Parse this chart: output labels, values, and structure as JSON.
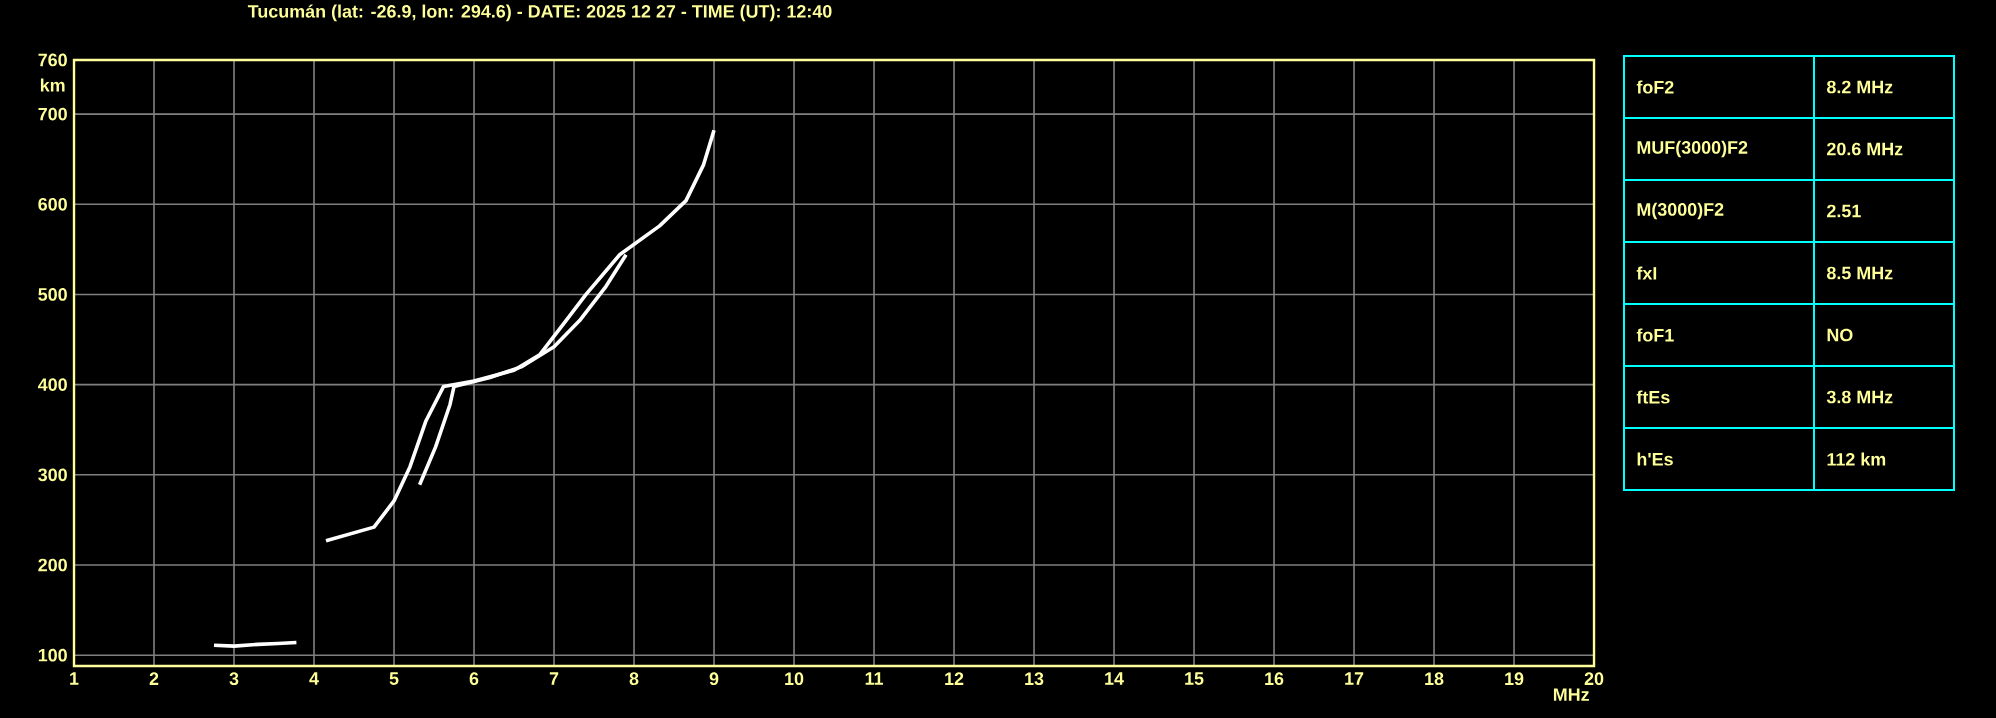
{
  "chart_data": [
    {
      "type": "line",
      "title": "Tucumán (lat: -26.9, lon: 294.6) - DATE: 2025 12 27 - TIME (UT): 12:40",
      "xlabel": "MHz",
      "ylabel": "km",
      "xlim": [
        1,
        20
      ],
      "ylim": [
        88,
        760
      ],
      "xticks": [
        1,
        2,
        3,
        4,
        5,
        6,
        7,
        8,
        9,
        10,
        11,
        12,
        13,
        14,
        15,
        16,
        17,
        18,
        19,
        20
      ],
      "yticks": [
        100,
        200,
        300,
        400,
        500,
        600,
        700,
        760
      ],
      "grid": true,
      "marker": "none",
      "line_style": "solid",
      "series": [
        {
          "color": "#ffffff",
          "x": [
            2.75,
            3.0,
            3.3,
            3.55,
            3.78
          ],
          "values": [
            111,
            110,
            112,
            113,
            114
          ]
        },
        {
          "color": "#ffffff",
          "x": [
            4.15,
            4.75,
            5.0,
            5.2,
            5.4,
            5.62,
            6.0,
            6.5,
            6.82,
            7.15,
            7.4,
            7.82,
            8.32,
            8.65,
            8.87,
            9.0
          ],
          "values": [
            227,
            242,
            271,
            309,
            360,
            398,
            404,
            416,
            433,
            471,
            500,
            544,
            576,
            604,
            644,
            682
          ]
        },
        {
          "color": "#ffffff",
          "x": [
            5.32,
            5.52,
            5.7,
            5.75,
            6.2,
            6.6,
            7.0,
            7.32,
            7.65,
            7.9
          ],
          "values": [
            289,
            331,
            378,
            398,
            408,
            420,
            442,
            471,
            509,
            544
          ]
        }
      ]
    },
    {
      "type": "other",
      "categories": [
        "foF2",
        "MUF(3000)F2",
        "M(3000)F2",
        "fxI",
        "foF1",
        "ftEs",
        "h'Es"
      ],
      "annotations": [
        "8.2 MHz",
        "20.6 MHz",
        "2.51",
        "8.5 MHz",
        "NO",
        "3.8 MHz",
        "112 km"
      ]
    }
  ]
}
